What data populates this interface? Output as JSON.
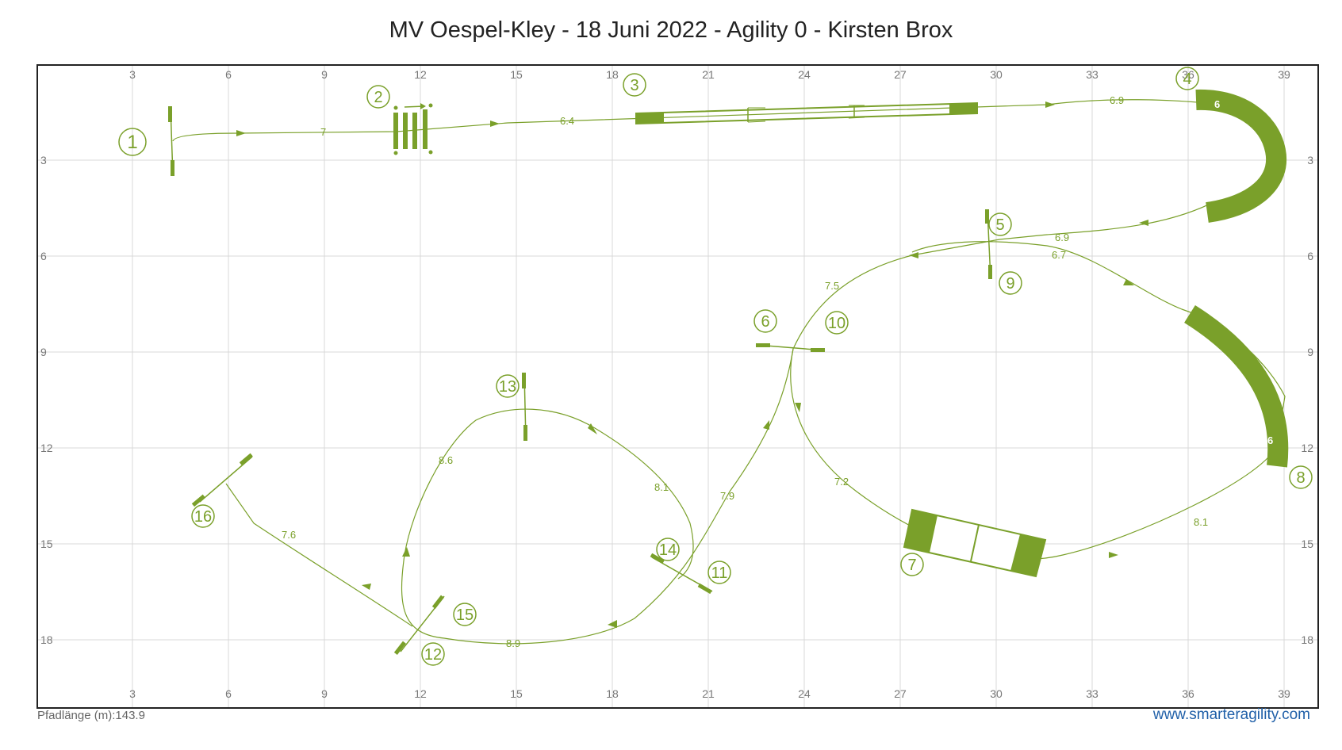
{
  "title": "MV Oespel-Kley - 18 Juni 2022 - Agility 0 - Kirsten Brox",
  "footer": {
    "path_length_label": "Pfadlänge (m):",
    "path_length_value": "143.9",
    "website": "www.smarteragility.com"
  },
  "colors": {
    "obstacle": "#7aa02a",
    "grid": "#d9d9d9",
    "border": "#222222",
    "link": "#1f5fa8"
  },
  "grid": {
    "x_ticks": [
      "3",
      "6",
      "9",
      "12",
      "15",
      "18",
      "21",
      "24",
      "27",
      "30",
      "33",
      "36",
      "39"
    ],
    "y_ticks": [
      "3",
      "6",
      "9",
      "12",
      "15",
      "18"
    ]
  },
  "obstacle_numbers": [
    "1",
    "2",
    "3",
    "4",
    "5",
    "6",
    "7",
    "8",
    "9",
    "10",
    "11",
    "12",
    "13",
    "14",
    "15",
    "16"
  ],
  "segment_lengths": [
    "7",
    "6.4",
    "6.9",
    "6.9",
    "6.7",
    "7.5",
    "7.2",
    "8.1",
    "7.9",
    "8.9",
    "8.6",
    "8.1",
    "7.6"
  ],
  "tunnel_labels": [
    "6",
    "6"
  ]
}
